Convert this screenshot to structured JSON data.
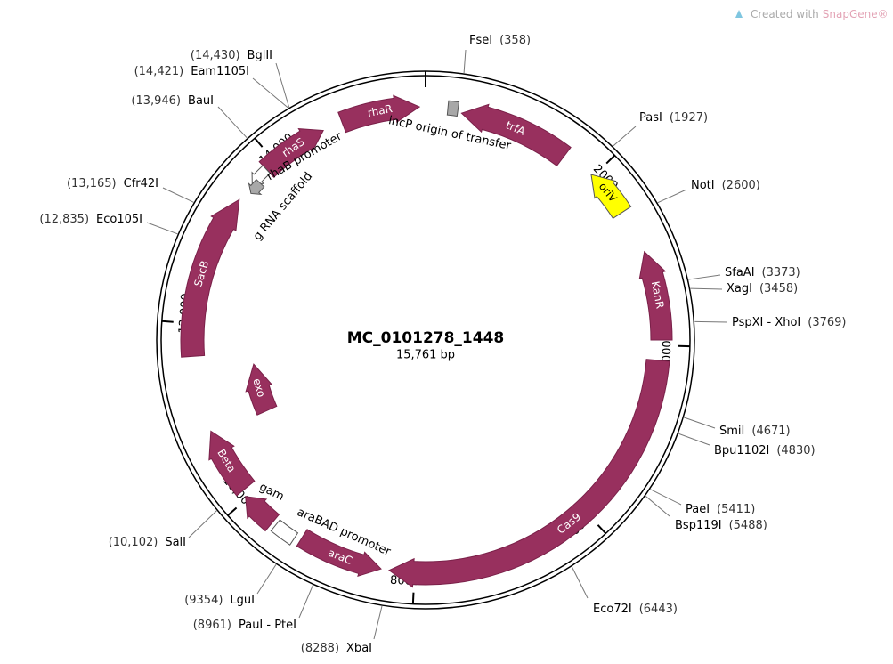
{
  "watermark": {
    "prefix": "Created with",
    "brand": "SnapGene®"
  },
  "plasmid": {
    "name": "MC_0101278_1448",
    "length": {
      "value": 15761,
      "label": "15,761 bp"
    }
  },
  "ruler": [
    2000,
    4000,
    6000,
    8000,
    {
      "value": 10000,
      "label": "10,000"
    },
    {
      "value": 12000,
      "label": "12,000"
    },
    {
      "value": 14000,
      "label": "14,000"
    }
  ],
  "sites": [
    {
      "name": "FseI",
      "position": {
        "value": 358,
        "label": "(358)"
      }
    },
    {
      "name": "PasI",
      "position": {
        "value": 1927,
        "label": "(1927)"
      }
    },
    {
      "name": "NotI",
      "position": {
        "value": 2600,
        "label": "(2600)"
      }
    },
    {
      "name": "SfaAI",
      "position": {
        "value": 3373,
        "label": "(3373)"
      }
    },
    {
      "name": "XagI",
      "position": {
        "value": 3458,
        "label": "(3458)"
      }
    },
    {
      "name": "PspXI - XhoI",
      "position": {
        "value": 3769,
        "label": "(3769)"
      }
    },
    {
      "name": "SmiI",
      "position": {
        "value": 4671,
        "label": "(4671)"
      }
    },
    {
      "name": "Bpu1102I",
      "position": {
        "value": 4830,
        "label": "(4830)"
      }
    },
    {
      "name": "PaeI",
      "position": {
        "value": 5411,
        "label": "(5411)"
      }
    },
    {
      "name": "Bsp119I",
      "position": {
        "value": 5488,
        "label": "(5488)"
      }
    },
    {
      "name": "Eco72I",
      "position": {
        "value": 6443,
        "label": "(6443)"
      }
    },
    {
      "name": "XbaI",
      "position": {
        "value": 8288,
        "label": "(8288)"
      }
    },
    {
      "name": "PauI - PteI",
      "position": {
        "value": 8961,
        "label": "(8961)"
      }
    },
    {
      "name": "LguI",
      "position": {
        "value": 9354,
        "label": "(9354)"
      }
    },
    {
      "name": "SalI",
      "position": {
        "value": 10102,
        "label": "(10,102)"
      }
    },
    {
      "name": "Eco105I",
      "position": {
        "value": 12835,
        "label": "(12,835)"
      }
    },
    {
      "name": "Cfr42I",
      "position": {
        "value": 13165,
        "label": "(13,165)"
      }
    },
    {
      "name": "BauI",
      "position": {
        "value": 13946,
        "label": "(13,946)"
      }
    },
    {
      "name": "Eam1105I",
      "position": {
        "value": 14421,
        "label": "(14,421)"
      }
    },
    {
      "name": "BglII",
      "position": {
        "value": 14430,
        "label": "(14,430)"
      }
    }
  ],
  "features": [
    {
      "name": "trfA"
    },
    {
      "name": "rhaR"
    },
    {
      "name": "rhaS"
    },
    {
      "name": "incP origin of transfer"
    },
    {
      "name": "rhaB promoter"
    },
    {
      "name": "g RNA scaffold"
    },
    {
      "name": "SacB"
    },
    {
      "name": "oriV"
    },
    {
      "name": "KanR"
    },
    {
      "name": "Cas9"
    },
    {
      "name": "araC"
    },
    {
      "name": "araBAD promoter"
    },
    {
      "name": "gam"
    },
    {
      "name": "Beta"
    },
    {
      "name": "exo"
    }
  ]
}
